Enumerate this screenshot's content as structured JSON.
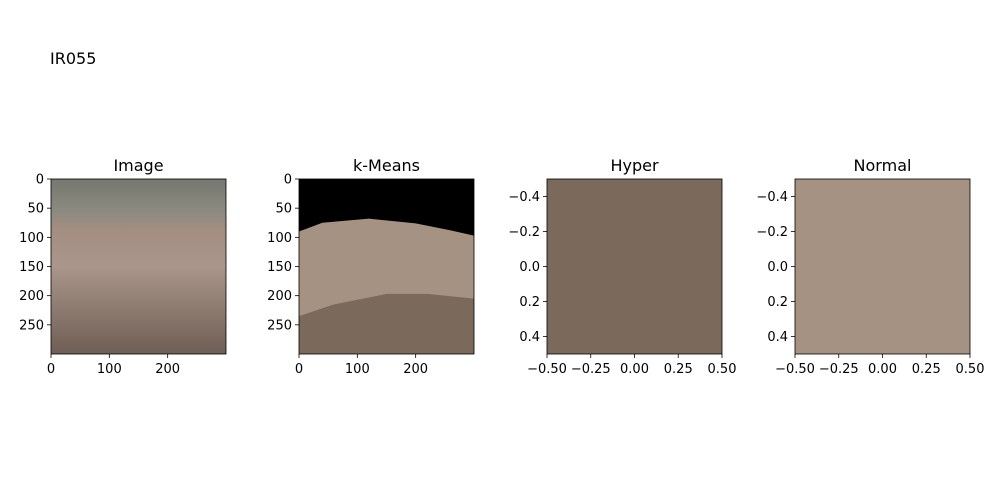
{
  "figure_label": "IR055",
  "colors": {
    "image_top": "#74786f",
    "image_band": "#8b8a80",
    "image_skin": "#a28d81",
    "image_skin_light": "#aa968a",
    "image_bottom": "#6f5e55",
    "kmeans_background": "#000000",
    "kmeans_light": "#a59283",
    "kmeans_dark": "#7b695b",
    "hyper": "#7b695b",
    "normal": "#a59283"
  },
  "chart_data": [
    {
      "type": "image",
      "title": "Image",
      "xlim": [
        0,
        300
      ],
      "ylim": [
        300,
        0
      ],
      "xticks": [
        0,
        100,
        200
      ],
      "xtick_labels": [
        "0",
        "100",
        "200"
      ],
      "yticks": [
        0,
        50,
        100,
        150,
        200,
        250
      ],
      "ytick_labels": [
        "0",
        "50",
        "100",
        "150",
        "200",
        "250"
      ]
    },
    {
      "type": "image",
      "title": "k-Means",
      "xlim": [
        0,
        300
      ],
      "ylim": [
        300,
        0
      ],
      "xticks": [
        0,
        100,
        200
      ],
      "xtick_labels": [
        "0",
        "100",
        "200"
      ],
      "yticks": [
        0,
        50,
        100,
        150,
        200,
        250
      ],
      "ytick_labels": [
        "0",
        "50",
        "100",
        "150",
        "200",
        "250"
      ],
      "segments": [
        {
          "color": "background",
          "y_boundary": [
            [
              0,
              90
            ],
            [
              40,
              75
            ],
            [
              120,
              68
            ],
            [
              200,
              76
            ],
            [
              260,
              88
            ],
            [
              300,
              97
            ]
          ]
        },
        {
          "color": "light",
          "y_boundary": [
            [
              0,
              235
            ],
            [
              60,
              215
            ],
            [
              150,
              197
            ],
            [
              220,
              197
            ],
            [
              300,
              205
            ]
          ]
        },
        {
          "color": "dark"
        }
      ]
    },
    {
      "type": "image",
      "title": "Hyper",
      "xlim": [
        -0.5,
        0.5
      ],
      "ylim": [
        0.5,
        -0.5
      ],
      "xticks": [
        -0.5,
        -0.25,
        0.0,
        0.25,
        0.5
      ],
      "xtick_labels": [
        "−0.50",
        "−0.25",
        "0.00",
        "0.25",
        "0.50"
      ],
      "yticks": [
        -0.4,
        -0.2,
        0.0,
        0.2,
        0.4
      ],
      "ytick_labels": [
        "−0.4",
        "−0.2",
        "0.0",
        "0.2",
        "0.4"
      ],
      "fill": "hyper"
    },
    {
      "type": "image",
      "title": "Normal",
      "xlim": [
        -0.5,
        0.5
      ],
      "ylim": [
        0.5,
        -0.5
      ],
      "xticks": [
        -0.5,
        -0.25,
        0.0,
        0.25,
        0.5
      ],
      "xtick_labels": [
        "−0.50",
        "−0.25",
        "0.00",
        "0.25",
        "0.50"
      ],
      "yticks": [
        -0.4,
        -0.2,
        0.0,
        0.2,
        0.4
      ],
      "ytick_labels": [
        "−0.4",
        "−0.2",
        "0.0",
        "0.2",
        "0.4"
      ],
      "fill": "normal"
    }
  ]
}
